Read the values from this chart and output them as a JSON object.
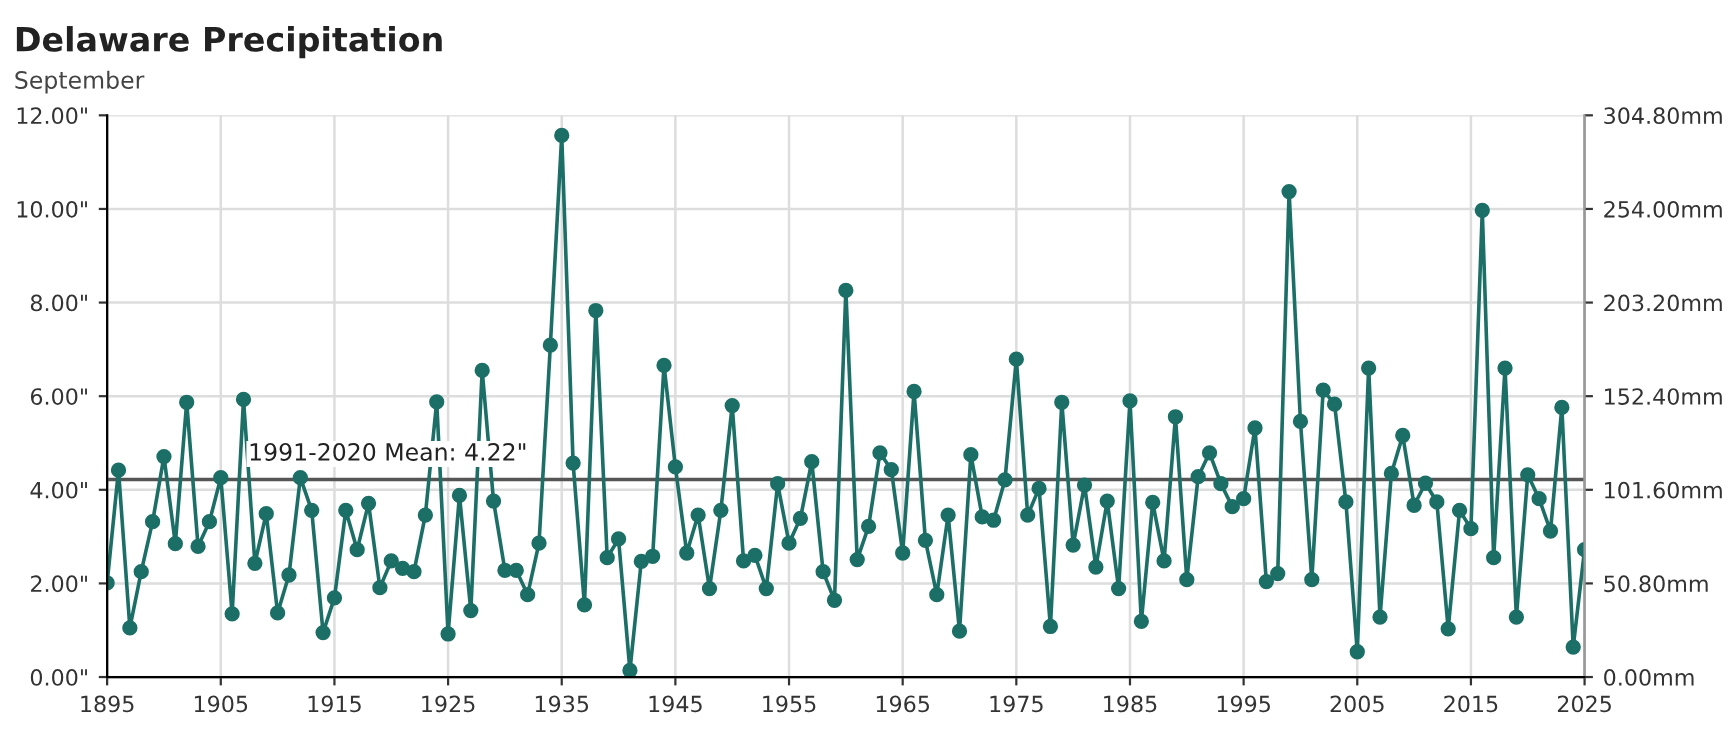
{
  "chart_data": {
    "type": "line",
    "title": "Delaware Precipitation",
    "subtitle": "September",
    "x": [
      1895,
      1896,
      1897,
      1898,
      1899,
      1900,
      1901,
      1902,
      1903,
      1904,
      1905,
      1906,
      1907,
      1908,
      1909,
      1910,
      1911,
      1912,
      1913,
      1914,
      1915,
      1916,
      1917,
      1918,
      1919,
      1920,
      1921,
      1922,
      1923,
      1924,
      1925,
      1926,
      1927,
      1928,
      1929,
      1930,
      1931,
      1932,
      1933,
      1934,
      1935,
      1936,
      1937,
      1938,
      1939,
      1940,
      1941,
      1942,
      1943,
      1944,
      1945,
      1946,
      1947,
      1948,
      1949,
      1950,
      1951,
      1952,
      1953,
      1954,
      1955,
      1956,
      1957,
      1958,
      1959,
      1960,
      1961,
      1962,
      1963,
      1964,
      1965,
      1966,
      1967,
      1968,
      1969,
      1970,
      1971,
      1972,
      1973,
      1974,
      1975,
      1976,
      1977,
      1978,
      1979,
      1980,
      1981,
      1982,
      1983,
      1984,
      1985,
      1986,
      1987,
      1988,
      1989,
      1990,
      1991,
      1992,
      1993,
      1994,
      1995,
      1996,
      1997,
      1998,
      1999,
      2000,
      2001,
      2002,
      2003,
      2004,
      2005,
      2006,
      2007,
      2008,
      2009,
      2010,
      2011,
      2012,
      2013,
      2014,
      2015,
      2016,
      2017,
      2018,
      2019,
      2020,
      2021,
      2022,
      2023,
      2024,
      2025
    ],
    "series": [
      {
        "color": "#1b6f66",
        "values": [
          2.01,
          4.42,
          1.05,
          2.25,
          3.32,
          4.71,
          2.85,
          5.87,
          2.79,
          3.32,
          4.26,
          1.35,
          5.93,
          2.43,
          3.49,
          1.37,
          2.18,
          4.26,
          3.56,
          0.95,
          1.69,
          3.56,
          2.72,
          3.71,
          1.91,
          2.48,
          2.32,
          2.25,
          3.46,
          5.88,
          0.92,
          3.88,
          1.42,
          6.55,
          3.76,
          2.28,
          2.28,
          1.76,
          2.86,
          7.09,
          11.57,
          4.57,
          1.54,
          7.83,
          2.55,
          2.95,
          0.14,
          2.47,
          2.58,
          6.66,
          4.49,
          2.65,
          3.46,
          1.89,
          3.56,
          5.8,
          2.48,
          2.6,
          1.89,
          4.13,
          2.86,
          3.39,
          4.6,
          2.25,
          1.64,
          8.26,
          2.51,
          3.22,
          4.79,
          4.43,
          2.65,
          6.1,
          2.92,
          1.76,
          3.46,
          0.98,
          4.75,
          3.42,
          3.35,
          4.21,
          6.79,
          3.46,
          4.03,
          1.08,
          5.87,
          2.82,
          4.1,
          2.35,
          3.76,
          1.89,
          5.9,
          1.19,
          3.73,
          2.48,
          5.56,
          2.08,
          4.28,
          4.79,
          4.13,
          3.64,
          3.81,
          5.32,
          2.04,
          2.21,
          10.37,
          5.46,
          2.08,
          6.13,
          5.83,
          3.74,
          0.54,
          6.6,
          1.28,
          4.35,
          5.16,
          3.67,
          4.14,
          3.74,
          1.03,
          3.56,
          3.17,
          9.97,
          2.55,
          6.6,
          1.28,
          4.32,
          3.81,
          3.12,
          5.76,
          0.64,
          2.72
        ]
      }
    ],
    "marker": "circle",
    "line_style": "solid",
    "grid": true,
    "legend": false,
    "xlim": [
      1895,
      2025
    ],
    "xticks": [
      1895,
      1905,
      1915,
      1925,
      1935,
      1945,
      1955,
      1965,
      1975,
      1985,
      1995,
      2005,
      2015,
      2025
    ],
    "ylim": [
      0,
      12
    ],
    "yticks": [
      {
        "value": 0,
        "label": "0.00\""
      },
      {
        "value": 2,
        "label": "2.00\""
      },
      {
        "value": 4,
        "label": "4.00\""
      },
      {
        "value": 6,
        "label": "6.00\""
      },
      {
        "value": 8,
        "label": "8.00\""
      },
      {
        "value": 10,
        "label": "10.00\""
      },
      {
        "value": 12,
        "label": "12.00\""
      }
    ],
    "y2lim": [
      0,
      304.8
    ],
    "y2ticks": [
      {
        "value": 0,
        "label": "0.00mm"
      },
      {
        "value": 50.8,
        "label": "50.80mm"
      },
      {
        "value": 101.6,
        "label": "101.60mm"
      },
      {
        "value": 152.4,
        "label": "152.40mm"
      },
      {
        "value": 203.2,
        "label": "203.20mm"
      },
      {
        "value": 254,
        "label": "254.00mm"
      },
      {
        "value": 304.8,
        "label": "304.80mm"
      }
    ],
    "ref_lines": [
      {
        "axis": "y",
        "value": 4.22,
        "label": "1991-2020 Mean: 4.22\"",
        "color": "#555555",
        "line_style": "solid"
      }
    ]
  }
}
